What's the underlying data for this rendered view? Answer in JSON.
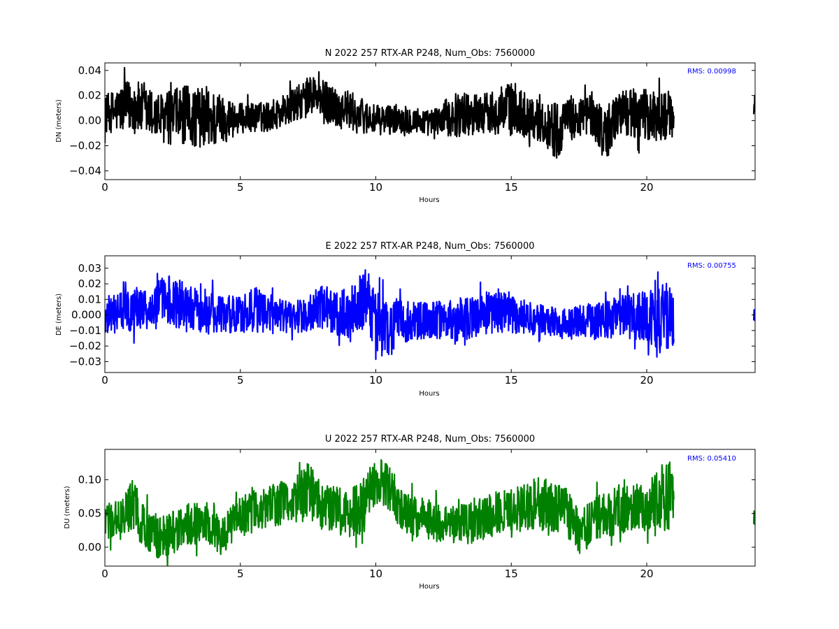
{
  "chart_data": [
    {
      "type": "line",
      "title": "N 2022 257 RTX-AR  P248, Num_Obs: 7560000",
      "xlabel": "Hours",
      "ylabel": "DN (meters)",
      "xlim": [
        0,
        24
      ],
      "ylim": [
        -0.047,
        0.046
      ],
      "x_ticks": [
        0,
        5,
        10,
        15,
        20
      ],
      "x_tick_labels": [
        "0",
        "5",
        "10",
        "15",
        "20"
      ],
      "y_ticks": [
        -0.04,
        -0.02,
        0.0,
        0.02,
        0.04
      ],
      "y_tick_labels": [
        "−0.04",
        "−0.02",
        "0.00",
        "0.02",
        "0.04"
      ],
      "grid": false,
      "annotation": "RMS:  0.00998",
      "series": [
        {
          "color": "#000000",
          "x": [
            0,
            1,
            2,
            3,
            4,
            5,
            6,
            7,
            7.7,
            8,
            9,
            10,
            11,
            12,
            13,
            14,
            15,
            16,
            16.7,
            17,
            18,
            18.5,
            19,
            20,
            21,
            24
          ],
          "center": [
            0.005,
            0.012,
            0.002,
            0.004,
            0.001,
            0.002,
            0.003,
            0.012,
            0.022,
            0.015,
            0.008,
            0.0,
            0.002,
            -0.002,
            0.005,
            0.006,
            0.01,
            0.0,
            -0.008,
            0.0,
            0.005,
            -0.012,
            0.008,
            0.003,
            0.005,
            0.008
          ],
          "spread": [
            0.015,
            0.022,
            0.02,
            0.024,
            0.024,
            0.012,
            0.012,
            0.014,
            0.016,
            0.018,
            0.016,
            0.012,
            0.012,
            0.01,
            0.018,
            0.016,
            0.022,
            0.016,
            0.024,
            0.016,
            0.018,
            0.022,
            0.018,
            0.022,
            0.018,
            0.012
          ],
          "gaps": [
            [
              21.0,
              23.95
            ]
          ]
        }
      ]
    },
    {
      "type": "line",
      "title": "E 2022 257 RTX-AR  P248, Num_Obs: 7560000",
      "xlabel": "Hours",
      "ylabel": "DE (meters)",
      "xlim": [
        0,
        24
      ],
      "ylim": [
        -0.037,
        0.038
      ],
      "x_ticks": [
        0,
        5,
        10,
        15,
        20
      ],
      "x_tick_labels": [
        "0",
        "5",
        "10",
        "15",
        "20"
      ],
      "y_ticks": [
        -0.03,
        -0.02,
        -0.01,
        0.0,
        0.01,
        0.02,
        0.03
      ],
      "y_tick_labels": [
        "−0.03",
        "−0.02",
        "−0.01",
        "0.000",
        "0.01",
        "0.02",
        "0.03"
      ],
      "grid": false,
      "annotation": "RMS:  0.00755",
      "series": [
        {
          "color": "#0000ff",
          "x": [
            0,
            1,
            2,
            2.5,
            3,
            4,
            5,
            5.5,
            6,
            7,
            8,
            9,
            9.6,
            10,
            10.5,
            11,
            12,
            13,
            14,
            14.5,
            15,
            16,
            17,
            18,
            19,
            20,
            20.4,
            21,
            24
          ],
          "center": [
            0.0,
            0.003,
            0.007,
            0.01,
            0.005,
            0.0,
            0.0,
            0.005,
            0.0,
            -0.002,
            0.005,
            0.0,
            0.012,
            -0.005,
            -0.01,
            -0.005,
            -0.003,
            -0.003,
            0.0,
            0.003,
            0.0,
            -0.003,
            -0.006,
            -0.004,
            -0.002,
            0.0,
            0.0,
            -0.002,
            0.0
          ],
          "spread": [
            0.012,
            0.014,
            0.016,
            0.018,
            0.014,
            0.014,
            0.012,
            0.016,
            0.012,
            0.01,
            0.014,
            0.016,
            0.02,
            0.02,
            0.018,
            0.014,
            0.012,
            0.014,
            0.014,
            0.016,
            0.012,
            0.01,
            0.01,
            0.012,
            0.014,
            0.016,
            0.028,
            0.016,
            0.006
          ],
          "gaps": [
            [
              21.0,
              23.95
            ]
          ]
        }
      ]
    },
    {
      "type": "line",
      "title": "U 2022 257 RTX-AR  P248, Num_Obs: 7560000",
      "xlabel": "Hours",
      "ylabel": "DU (meters)",
      "xlim": [
        0,
        24
      ],
      "ylim": [
        -0.028,
        0.145
      ],
      "x_ticks": [
        0,
        5,
        10,
        15,
        20
      ],
      "x_tick_labels": [
        "0",
        "5",
        "10",
        "15",
        "20"
      ],
      "y_ticks": [
        0.0,
        0.05,
        0.1
      ],
      "y_tick_labels": [
        "0.00",
        "0.05",
        "0.10"
      ],
      "grid": false,
      "annotation": "RMS:  0.05410",
      "series": [
        {
          "color": "#008000",
          "x": [
            0,
            0.5,
            1,
            1.5,
            2,
            3,
            4,
            4.3,
            5,
            6,
            7,
            7.5,
            8,
            9,
            9.5,
            10,
            10.5,
            11,
            12,
            13,
            14,
            15,
            16,
            17,
            17.5,
            18,
            19,
            20,
            20.9,
            21,
            24
          ],
          "center": [
            0.04,
            0.04,
            0.06,
            0.03,
            0.01,
            0.035,
            0.035,
            0.015,
            0.045,
            0.06,
            0.07,
            0.085,
            0.06,
            0.05,
            0.06,
            0.1,
            0.09,
            0.05,
            0.04,
            0.03,
            0.045,
            0.055,
            0.065,
            0.055,
            0.02,
            0.04,
            0.055,
            0.06,
            0.08,
            0.06,
            0.045
          ],
          "spread": [
            0.03,
            0.03,
            0.04,
            0.035,
            0.035,
            0.03,
            0.035,
            0.03,
            0.03,
            0.03,
            0.035,
            0.04,
            0.035,
            0.035,
            0.04,
            0.035,
            0.035,
            0.03,
            0.03,
            0.03,
            0.035,
            0.03,
            0.04,
            0.035,
            0.035,
            0.035,
            0.035,
            0.035,
            0.06,
            0.03,
            0.012
          ],
          "gaps": [
            [
              21.0,
              23.95
            ]
          ]
        }
      ]
    }
  ]
}
